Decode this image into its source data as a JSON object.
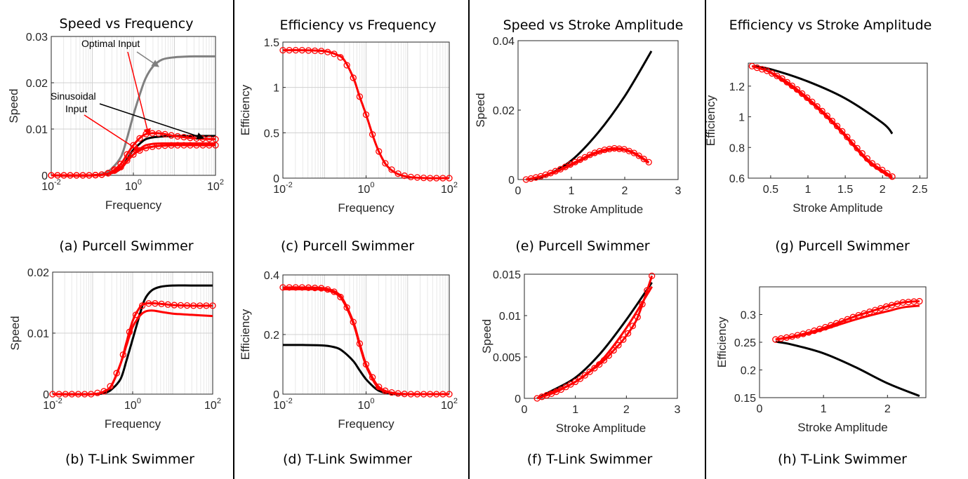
{
  "column_titles": [
    "Speed vs Frequency",
    "Efficiency vs Frequency",
    "Speed vs Stroke Amplitude",
    "Efficiency vs Stroke Amplitude"
  ],
  "colors": {
    "black": "#000000",
    "red": "#ff0000",
    "gray": "#808080"
  },
  "annotations": {
    "optimal": "Optimal Input",
    "sinusoidal_1": "Sinusoidal",
    "sinusoidal_2": "Input"
  },
  "chart_data": [
    {
      "id": "a",
      "type": "line",
      "caption": "(a) Purcell Swimmer",
      "xlabel": "Frequency",
      "ylabel": "Speed",
      "xscale": "log",
      "xlim": [
        0.01,
        100
      ],
      "ylim": [
        0,
        0.03
      ],
      "xticks": [
        0.01,
        1,
        100
      ],
      "xtick_labels": [
        "10",
        "10",
        "10"
      ],
      "xtick_exps": [
        "-2",
        "0",
        "2"
      ],
      "yticks": [
        0,
        0.01,
        0.02,
        0.03
      ],
      "ytick_labels": [
        "0",
        "0.01",
        "0.02",
        "0.03"
      ],
      "grid": true,
      "series": [
        {
          "color": "#808080",
          "markers": false,
          "x": [
            0.01,
            0.1,
            0.2,
            0.3,
            0.5,
            0.7,
            1,
            1.5,
            2,
            3,
            5,
            10,
            30,
            100
          ],
          "y": [
            0,
            0,
            0.0005,
            0.0015,
            0.004,
            0.008,
            0.013,
            0.018,
            0.021,
            0.0235,
            0.025,
            0.0255,
            0.0257,
            0.0257
          ]
        },
        {
          "color": "#000000",
          "markers": false,
          "x": [
            0.01,
            0.1,
            0.3,
            0.5,
            0.7,
            1,
            1.5,
            2,
            3,
            5,
            10,
            30,
            100
          ],
          "y": [
            0,
            0,
            0.0005,
            0.0015,
            0.0035,
            0.0055,
            0.007,
            0.0078,
            0.0082,
            0.0084,
            0.0085,
            0.0085,
            0.0085
          ]
        },
        {
          "color": "#ff0000",
          "markers": true,
          "x": [
            0.01,
            0.1,
            0.2,
            0.3,
            0.5,
            0.7,
            1,
            1.5,
            2,
            3,
            5,
            10,
            30,
            100
          ],
          "y": [
            0,
            0,
            0.0002,
            0.0008,
            0.0025,
            0.0045,
            0.0065,
            0.0082,
            0.0089,
            0.0091,
            0.009,
            0.0085,
            0.008,
            0.0078
          ]
        },
        {
          "color": "#ff0000",
          "markers": false,
          "x": [
            0.01,
            0.1,
            0.3,
            0.5,
            0.7,
            1,
            1.5,
            2,
            3,
            5,
            10,
            30,
            100
          ],
          "y": [
            0,
            0,
            0.0005,
            0.0015,
            0.003,
            0.0045,
            0.0058,
            0.0065,
            0.0068,
            0.0069,
            0.0069,
            0.0069,
            0.0069
          ]
        },
        {
          "color": "#ff0000",
          "markers": true,
          "x": [
            0.01,
            0.1,
            0.2,
            0.3,
            0.5,
            0.7,
            1,
            1.5,
            2,
            3,
            5,
            10,
            30,
            100
          ],
          "y": [
            0,
            0,
            0.0002,
            0.0007,
            0.0018,
            0.0032,
            0.0045,
            0.0055,
            0.0059,
            0.0062,
            0.0064,
            0.0065,
            0.0065,
            0.0065
          ]
        }
      ]
    },
    {
      "id": "b",
      "type": "line",
      "caption": "(b) T-Link Swimmer",
      "xlabel": "Frequency",
      "ylabel": "Speed",
      "xscale": "log",
      "xlim": [
        0.01,
        100
      ],
      "ylim": [
        0,
        0.02
      ],
      "xticks": [
        0.01,
        1,
        100
      ],
      "xtick_labels": [
        "10",
        "10",
        "10"
      ],
      "xtick_exps": [
        "-2",
        "0",
        "2"
      ],
      "yticks": [
        0,
        0.01,
        0.02
      ],
      "ytick_labels": [
        "0",
        "0.01",
        "0.02"
      ],
      "grid": true,
      "series": [
        {
          "color": "#000000",
          "markers": false,
          "x": [
            0.01,
            0.1,
            0.2,
            0.3,
            0.5,
            0.7,
            1,
            1.5,
            2,
            3,
            5,
            10,
            30,
            100
          ],
          "y": [
            0,
            0,
            0.0002,
            0.0008,
            0.0025,
            0.0055,
            0.009,
            0.013,
            0.0155,
            0.017,
            0.0176,
            0.0178,
            0.0178,
            0.0178
          ]
        },
        {
          "color": "#ff0000",
          "markers": true,
          "x": [
            0.01,
            0.1,
            0.2,
            0.3,
            0.5,
            0.7,
            1,
            1.5,
            2,
            3,
            5,
            10,
            30,
            100
          ],
          "y": [
            0,
            0,
            0.0005,
            0.0015,
            0.005,
            0.0085,
            0.012,
            0.0142,
            0.0148,
            0.0149,
            0.0148,
            0.0146,
            0.0145,
            0.0145
          ]
        },
        {
          "color": "#ff0000",
          "markers": false,
          "x": [
            0.01,
            0.1,
            0.2,
            0.3,
            0.5,
            0.7,
            1,
            1.5,
            2,
            3,
            5,
            10,
            30,
            100
          ],
          "y": [
            0,
            0,
            0.0005,
            0.0015,
            0.005,
            0.008,
            0.011,
            0.0128,
            0.0135,
            0.0137,
            0.0135,
            0.0132,
            0.013,
            0.0128
          ]
        }
      ]
    },
    {
      "id": "c",
      "type": "line",
      "caption": "(c) Purcell Swimmer",
      "xlabel": "Frequency",
      "ylabel": "Efficiency",
      "xscale": "log",
      "xlim": [
        0.01,
        100
      ],
      "ylim": [
        0,
        1.5
      ],
      "xticks": [
        0.01,
        1,
        100
      ],
      "xtick_labels": [
        "10",
        "10",
        "10"
      ],
      "xtick_exps": [
        "-2",
        "0",
        "2"
      ],
      "yticks": [
        0,
        0.5,
        1,
        1.5
      ],
      "ytick_labels": [
        "0",
        "0.5",
        "1",
        "1.5"
      ],
      "grid": true,
      "series": [
        {
          "color": "#ff0000",
          "markers": true,
          "x": [
            0.01,
            0.03,
            0.1,
            0.2,
            0.3,
            0.5,
            0.7,
            1,
            1.5,
            2,
            3,
            5,
            10,
            30,
            100
          ],
          "y": [
            1.41,
            1.41,
            1.4,
            1.36,
            1.3,
            1.1,
            0.9,
            0.7,
            0.45,
            0.3,
            0.15,
            0.06,
            0.015,
            0,
            0
          ]
        }
      ]
    },
    {
      "id": "d",
      "type": "line",
      "caption": "(d) T-Link Swimmer",
      "xlabel": "Frequency",
      "ylabel": "Efficiency",
      "xscale": "log",
      "xlim": [
        0.01,
        100
      ],
      "ylim": [
        0,
        0.4
      ],
      "xticks": [
        0.01,
        1,
        100
      ],
      "xtick_labels": [
        "10",
        "10",
        "10"
      ],
      "xtick_exps": [
        "-2",
        "0",
        "2"
      ],
      "yticks": [
        0,
        0.2,
        0.4
      ],
      "ytick_labels": [
        "0",
        "0.2",
        "0.4"
      ],
      "grid": true,
      "series": [
        {
          "color": "#000000",
          "markers": false,
          "x": [
            0.01,
            0.03,
            0.1,
            0.2,
            0.3,
            0.5,
            0.7,
            1,
            1.5,
            2,
            3,
            5,
            10,
            30,
            100
          ],
          "y": [
            0.165,
            0.165,
            0.163,
            0.155,
            0.14,
            0.11,
            0.08,
            0.05,
            0.025,
            0.012,
            0.004,
            0,
            0,
            0,
            0
          ]
        },
        {
          "color": "#ff0000",
          "markers": true,
          "x": [
            0.01,
            0.03,
            0.1,
            0.2,
            0.3,
            0.5,
            0.7,
            1,
            1.5,
            2,
            3,
            5,
            10,
            30,
            100
          ],
          "y": [
            0.358,
            0.358,
            0.355,
            0.34,
            0.31,
            0.24,
            0.17,
            0.1,
            0.05,
            0.025,
            0.01,
            0.003,
            0,
            0,
            0
          ]
        },
        {
          "color": "#ff0000",
          "markers": false,
          "x": [
            0.01,
            0.03,
            0.1,
            0.2,
            0.3,
            0.5,
            0.7,
            1,
            1.5,
            2,
            3,
            5,
            10,
            30,
            100
          ],
          "y": [
            0.352,
            0.352,
            0.35,
            0.335,
            0.305,
            0.235,
            0.165,
            0.095,
            0.045,
            0.02,
            0.008,
            0.002,
            0,
            0,
            0
          ]
        }
      ]
    },
    {
      "id": "e",
      "type": "line",
      "caption": "(e) Purcell Swimmer",
      "xlabel": "Stroke Amplitude",
      "ylabel": "Speed",
      "xscale": "linear",
      "xlim": [
        0,
        3
      ],
      "ylim": [
        0,
        0.04
      ],
      "xticks": [
        0,
        1,
        2,
        3
      ],
      "xtick_labels": [
        "0",
        "1",
        "2",
        "3"
      ],
      "yticks": [
        0,
        0.02,
        0.04
      ],
      "ytick_labels": [
        "0",
        "0.02",
        "0.04"
      ],
      "grid": false,
      "series": [
        {
          "color": "#000000",
          "markers": false,
          "x": [
            0.15,
            0.5,
            1,
            1.5,
            2,
            2.5
          ],
          "y": [
            0,
            0.001,
            0.0055,
            0.0135,
            0.024,
            0.037
          ]
        },
        {
          "color": "#ff0000",
          "markers": true,
          "x": [
            0.15,
            0.4,
            0.6,
            0.8,
            1,
            1.2,
            1.4,
            1.6,
            1.8,
            2,
            2.2,
            2.45
          ],
          "y": [
            0,
            0.0008,
            0.0018,
            0.003,
            0.0045,
            0.006,
            0.0075,
            0.0085,
            0.009,
            0.0087,
            0.0075,
            0.005
          ]
        },
        {
          "color": "#ff0000",
          "markers": false,
          "x": [
            0.15,
            0.4,
            0.6,
            0.8,
            1,
            1.2,
            1.4,
            1.6,
            1.8,
            2,
            2.2,
            2.45
          ],
          "y": [
            0,
            0.0007,
            0.0016,
            0.0028,
            0.0042,
            0.0057,
            0.0072,
            0.0082,
            0.0087,
            0.0085,
            0.0073,
            0.0048
          ]
        }
      ]
    },
    {
      "id": "f",
      "type": "line",
      "caption": "(f) T-Link Swimmer",
      "xlabel": "Stroke Amplitude",
      "ylabel": "Speed",
      "xscale": "linear",
      "xlim": [
        0,
        3
      ],
      "ylim": [
        0,
        0.015
      ],
      "xticks": [
        0,
        1,
        2,
        3
      ],
      "xtick_labels": [
        "0",
        "1",
        "2",
        "3"
      ],
      "yticks": [
        0,
        0.005,
        0.01,
        0.015
      ],
      "ytick_labels": [
        "0",
        "0.005",
        "0.01",
        "0.015"
      ],
      "grid": false,
      "series": [
        {
          "color": "#000000",
          "markers": false,
          "x": [
            0.25,
            0.5,
            1,
            1.5,
            2,
            2.5
          ],
          "y": [
            0,
            0.0008,
            0.0025,
            0.0055,
            0.0095,
            0.014
          ]
        },
        {
          "color": "#ff0000",
          "markers": true,
          "x": [
            0.25,
            0.4,
            0.55,
            0.7,
            0.85,
            1,
            1.15,
            1.3,
            1.45,
            1.6,
            1.75,
            1.9,
            2.05,
            2.2,
            2.35,
            2.5
          ],
          "y": [
            0,
            0.0003,
            0.0006,
            0.001,
            0.0015,
            0.002,
            0.0026,
            0.0033,
            0.004,
            0.0048,
            0.0058,
            0.0068,
            0.008,
            0.0095,
            0.012,
            0.0148
          ]
        },
        {
          "color": "#ff0000",
          "markers": false,
          "x": [
            0.25,
            0.5,
            1,
            1.5,
            2,
            2.5
          ],
          "y": [
            0,
            0.0006,
            0.002,
            0.0045,
            0.0085,
            0.0135
          ]
        }
      ]
    },
    {
      "id": "g",
      "type": "line",
      "caption": "(g) Purcell Swimmer",
      "xlabel": "Stroke Amplitude",
      "ylabel": "Efficiency",
      "xscale": "linear",
      "xlim": [
        0.2,
        2.6
      ],
      "ylim": [
        0.6,
        1.35
      ],
      "xticks": [
        0.5,
        1,
        1.5,
        2,
        2.5
      ],
      "xtick_labels": [
        "0.5",
        "1",
        "1.5",
        "2",
        "2.5"
      ],
      "yticks": [
        0.6,
        0.8,
        1,
        1.2
      ],
      "ytick_labels": [
        "0.6",
        "0.8",
        "1",
        "1.2"
      ],
      "grid": false,
      "series": [
        {
          "color": "#000000",
          "markers": false,
          "x": [
            0.25,
            0.5,
            1,
            1.5,
            2,
            2.13
          ],
          "y": [
            1.33,
            1.31,
            1.23,
            1.12,
            0.96,
            0.89
          ]
        },
        {
          "color": "#ff0000",
          "markers": true,
          "x": [
            0.25,
            0.45,
            0.65,
            0.85,
            1.05,
            1.25,
            1.45,
            1.65,
            1.85,
            2.13
          ],
          "y": [
            1.33,
            1.3,
            1.25,
            1.18,
            1.1,
            1.01,
            0.91,
            0.8,
            0.7,
            0.61
          ]
        },
        {
          "color": "#ff0000",
          "markers": false,
          "x": [
            0.25,
            0.45,
            0.65,
            0.85,
            1.05,
            1.25,
            1.45,
            1.65,
            1.85,
            2.13
          ],
          "y": [
            1.33,
            1.3,
            1.24,
            1.17,
            1.09,
            1.0,
            0.9,
            0.79,
            0.69,
            0.6
          ]
        }
      ]
    },
    {
      "id": "h",
      "type": "line",
      "caption": "(h) T-Link Swimmer",
      "xlabel": "Stroke Amplitude",
      "ylabel": "Efficiency",
      "xscale": "linear",
      "xlim": [
        0,
        2.6
      ],
      "ylim": [
        0.15,
        0.35
      ],
      "xticks": [
        0,
        1,
        2
      ],
      "xtick_labels": [
        "0",
        "1",
        "2"
      ],
      "yticks": [
        0.15,
        0.2,
        0.25,
        0.3
      ],
      "ytick_labels": [
        "0.15",
        "0.2",
        "0.25",
        "0.3"
      ],
      "grid": false,
      "series": [
        {
          "color": "#000000",
          "markers": false,
          "x": [
            0.25,
            0.5,
            1,
            1.5,
            2,
            2.5
          ],
          "y": [
            0.251,
            0.246,
            0.23,
            0.205,
            0.176,
            0.153
          ]
        },
        {
          "color": "#ff0000",
          "markers": true,
          "x": [
            0.25,
            0.5,
            0.75,
            1,
            1.25,
            1.5,
            1.75,
            2,
            2.25,
            2.5
          ],
          "y": [
            0.255,
            0.26,
            0.267,
            0.276,
            0.286,
            0.297,
            0.306,
            0.315,
            0.322,
            0.324
          ]
        },
        {
          "color": "#ff0000",
          "markers": false,
          "x": [
            0.25,
            0.5,
            0.75,
            1,
            1.25,
            1.5,
            1.75,
            2,
            2.25,
            2.5
          ],
          "y": [
            0.255,
            0.259,
            0.265,
            0.273,
            0.282,
            0.291,
            0.299,
            0.306,
            0.313,
            0.316
          ]
        }
      ]
    }
  ]
}
